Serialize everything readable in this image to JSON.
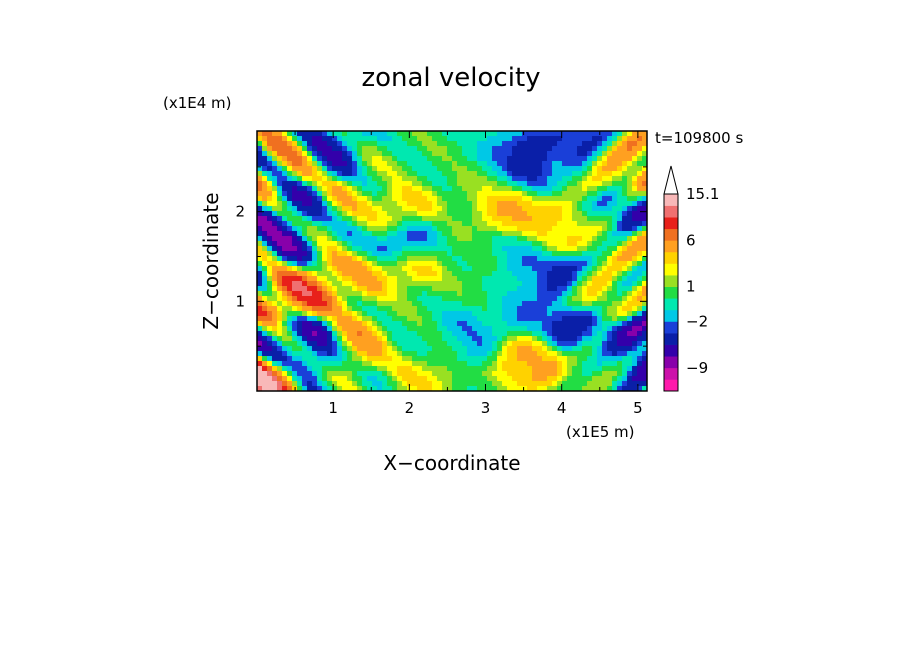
{
  "chart_data": {
    "type": "heatmap",
    "title": "zonal velocity",
    "xlabel": "X−coordinate",
    "ylabel": "Z−coordinate",
    "x_scale_label": "(x1E5 m)",
    "y_scale_label": "(x1E4 m)",
    "time_label": "t=109800 s",
    "x_range": [
      0,
      5.12
    ],
    "y_range": [
      0,
      2.9
    ],
    "x_ticks": [
      "1",
      "2",
      "3",
      "4",
      "5"
    ],
    "y_ticks": [
      "1",
      "2"
    ],
    "colorbar": {
      "tick_labels": [
        "15.1",
        "6",
        "1",
        "−2",
        "−9"
      ],
      "levels": [
        -15,
        -12,
        -9,
        -7,
        -5,
        -3,
        -2,
        -1,
        0,
        1,
        2,
        3,
        4,
        6,
        8,
        10,
        12,
        15.1
      ],
      "colors": [
        "#ff1aab",
        "#cc11aa",
        "#8800aa",
        "#3300aa",
        "#0a1fa8",
        "#1a3fd8",
        "#00c8e6",
        "#00e8b0",
        "#22dd44",
        "#99e022",
        "#ffff00",
        "#ffd200",
        "#ffa020",
        "#f07020",
        "#e8201a",
        "#f07070",
        "#f8b8b8"
      ]
    },
    "features": [
      {
        "x": 0.45,
        "z": 2.55,
        "v": 4
      },
      {
        "x": 0.55,
        "z": 2.0,
        "v": -5
      },
      {
        "x": 0.35,
        "z": 1.55,
        "v": -4
      },
      {
        "x": 0.45,
        "z": 1.05,
        "v": 9
      },
      {
        "x": 0.75,
        "z": 1.2,
        "v": 6
      },
      {
        "x": 0.35,
        "z": 0.55,
        "v": -4
      },
      {
        "x": 0.75,
        "z": 0.5,
        "v": -6
      },
      {
        "x": 0.1,
        "z": 0.2,
        "v": 10
      },
      {
        "x": 0.95,
        "z": 2.65,
        "v": -4
      },
      {
        "x": 1.05,
        "z": 2.05,
        "v": 3
      },
      {
        "x": 1.2,
        "z": 1.75,
        "v": 0
      },
      {
        "x": 1.3,
        "z": 1.3,
        "v": 4
      },
      {
        "x": 1.25,
        "z": 0.55,
        "v": 5
      },
      {
        "x": 1.7,
        "z": 2.5,
        "v": 0.8
      },
      {
        "x": 1.9,
        "z": 2.0,
        "v": 4
      },
      {
        "x": 1.95,
        "z": 1.65,
        "v": -5
      },
      {
        "x": 2.0,
        "z": 1.35,
        "v": 5
      },
      {
        "x": 2.05,
        "z": 1.05,
        "v": 0.3
      },
      {
        "x": 2.3,
        "z": 0.55,
        "v": 0
      },
      {
        "x": 2.2,
        "z": 0.2,
        "v": 3
      },
      {
        "x": 2.5,
        "z": 1.6,
        "v": 0.8
      },
      {
        "x": 2.6,
        "z": 2.7,
        "v": 0.5
      },
      {
        "x": 2.65,
        "z": 2.95,
        "v": 0
      },
      {
        "x": 2.7,
        "z": 0.6,
        "v": -2
      },
      {
        "x": 2.95,
        "z": 1.3,
        "v": 0.6
      },
      {
        "x": 3.05,
        "z": 2.35,
        "v": 2
      },
      {
        "x": 3.2,
        "z": 2.6,
        "v": -3
      },
      {
        "x": 3.35,
        "z": 2.05,
        "v": 5
      },
      {
        "x": 3.55,
        "z": 2.5,
        "v": -6
      },
      {
        "x": 3.45,
        "z": 1.45,
        "v": -2
      },
      {
        "x": 3.6,
        "z": 0.95,
        "v": -2
      },
      {
        "x": 3.6,
        "z": 0.3,
        "v": 5
      },
      {
        "x": 4.05,
        "z": 1.25,
        "v": -5
      },
      {
        "x": 3.95,
        "z": 1.8,
        "v": 4
      },
      {
        "x": 4.1,
        "z": 2.45,
        "v": 0.5
      },
      {
        "x": 4.2,
        "z": 2.65,
        "v": -5
      },
      {
        "x": 4.15,
        "z": 0.75,
        "v": -5
      },
      {
        "x": 4.35,
        "z": 1.1,
        "v": 5
      },
      {
        "x": 4.55,
        "z": 2.45,
        "v": 4
      },
      {
        "x": 4.6,
        "z": 1.7,
        "v": 1.5
      },
      {
        "x": 4.6,
        "z": 0.35,
        "v": 2
      },
      {
        "x": 4.85,
        "z": 2.0,
        "v": -4
      },
      {
        "x": 4.85,
        "z": 0.4,
        "v": -6
      },
      {
        "x": 5.0,
        "z": 2.55,
        "v": 5
      },
      {
        "x": 5.05,
        "z": 1.55,
        "v": 3
      },
      {
        "x": 5.05,
        "z": 0.6,
        "v": -6
      },
      {
        "x": 4.9,
        "z": 1.0,
        "v": 1
      }
    ]
  }
}
